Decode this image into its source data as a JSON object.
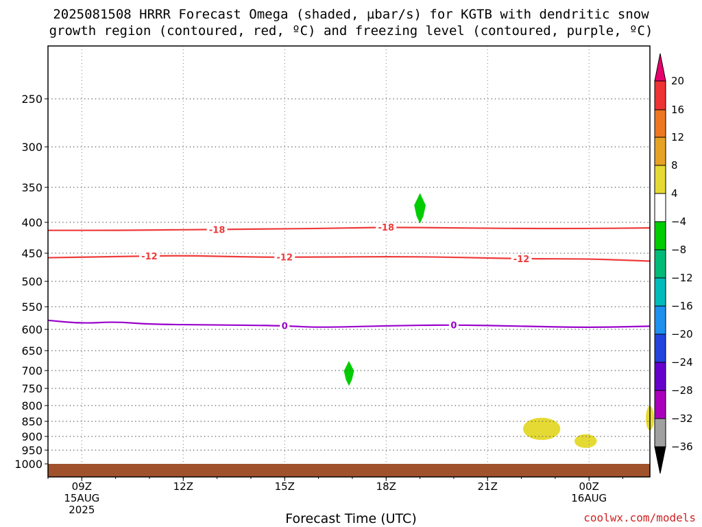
{
  "title_line1": "2025081508 HRRR Forecast Omega (shaded, µbar/s) for KGTB with dendritic snow",
  "title_line2": "growth region (contoured, red, ºC) and freezing level (contoured, purple, ºC)",
  "xaxis_title": "Forecast Time (UTC)",
  "credit": "coolwx.com/models",
  "chart_data": {
    "type": "heatmap",
    "x_hours_range": [
      8,
      25.8
    ],
    "y_pressure_range": [
      1000,
      200
    ],
    "y_ticks": [
      250,
      300,
      350,
      400,
      450,
      500,
      550,
      600,
      650,
      700,
      750,
      800,
      850,
      900,
      950,
      1000
    ],
    "x_ticks": [
      {
        "hour": 9,
        "label": "09Z",
        "sub1": "15AUG",
        "sub2": "2025"
      },
      {
        "hour": 12,
        "label": "12Z",
        "sub1": "",
        "sub2": ""
      },
      {
        "hour": 15,
        "label": "15Z",
        "sub1": "",
        "sub2": ""
      },
      {
        "hour": 18,
        "label": "18Z",
        "sub1": "",
        "sub2": ""
      },
      {
        "hour": 21,
        "label": "21Z",
        "sub1": "",
        "sub2": ""
      },
      {
        "hour": 24,
        "label": "00Z",
        "sub1": "16AUG",
        "sub2": ""
      }
    ],
    "ground_level_hPa": 1000,
    "contours": [
      {
        "name": "-18",
        "color": "#ee3a3a",
        "points": [
          [
            8,
            413
          ],
          [
            10,
            413
          ],
          [
            12,
            412
          ],
          [
            14,
            411
          ],
          [
            16,
            410
          ],
          [
            18,
            408
          ],
          [
            20,
            409
          ],
          [
            22,
            410
          ],
          [
            24,
            410
          ],
          [
            25.8,
            409
          ]
        ],
        "label_hours": [
          13,
          18
        ]
      },
      {
        "name": "-12",
        "color": "#ee3a3a",
        "points": [
          [
            8,
            458
          ],
          [
            10,
            456
          ],
          [
            12,
            454
          ],
          [
            14,
            457
          ],
          [
            16,
            457
          ],
          [
            18,
            456
          ],
          [
            20,
            457
          ],
          [
            22,
            460
          ],
          [
            24,
            460
          ],
          [
            25.8,
            464
          ]
        ],
        "label_hours": [
          11,
          15,
          22
        ]
      },
      {
        "name": "0",
        "color": "#9900cc",
        "points": [
          [
            8,
            580
          ],
          [
            9,
            587
          ],
          [
            10,
            583
          ],
          [
            11,
            589
          ],
          [
            13,
            590
          ],
          [
            15,
            592
          ],
          [
            16,
            596
          ],
          [
            18,
            592
          ],
          [
            20,
            590
          ],
          [
            22,
            593
          ],
          [
            24,
            596
          ],
          [
            25.8,
            593
          ]
        ],
        "label_hours": [
          15,
          20
        ]
      }
    ],
    "shaded_areas": [
      {
        "omega": -5,
        "color": "#00cc00",
        "center": [
          19.0,
          380
        ],
        "rx_hours": 0.17,
        "ry_hPa": 22
      },
      {
        "omega": -5,
        "color": "#00cc00",
        "center": [
          16.9,
          708
        ],
        "rx_hours": 0.15,
        "ry_hPa": 35
      },
      {
        "omega": 5,
        "color": "#e5da33",
        "center": [
          22.6,
          875
        ],
        "rx_hours": 0.55,
        "ry_hPa": 38
      },
      {
        "omega": 5,
        "color": "#e5da33",
        "center": [
          23.9,
          917
        ],
        "rx_hours": 0.33,
        "ry_hPa": 25
      },
      {
        "omega": 5,
        "color": "#e5da33",
        "center": [
          25.8,
          840
        ],
        "rx_hours": 0.12,
        "ry_hPa": 40
      }
    ],
    "colorbar": {
      "labels": [
        "20",
        "16",
        "12",
        "8",
        "4",
        "−4",
        "−8",
        "−12",
        "−16",
        "−20",
        "−24",
        "−28",
        "−32",
        "−36"
      ],
      "colors": [
        "#e8006e",
        "#ee3333",
        "#ee7722",
        "#e6a224",
        "#e5da33",
        "#ffffff",
        "#00cc00",
        "#00bb77",
        "#00bbbb",
        "#1e90ee",
        "#2244dd",
        "#6600cc",
        "#aa00bb",
        "#a0a0a0",
        "#000000"
      ]
    }
  }
}
